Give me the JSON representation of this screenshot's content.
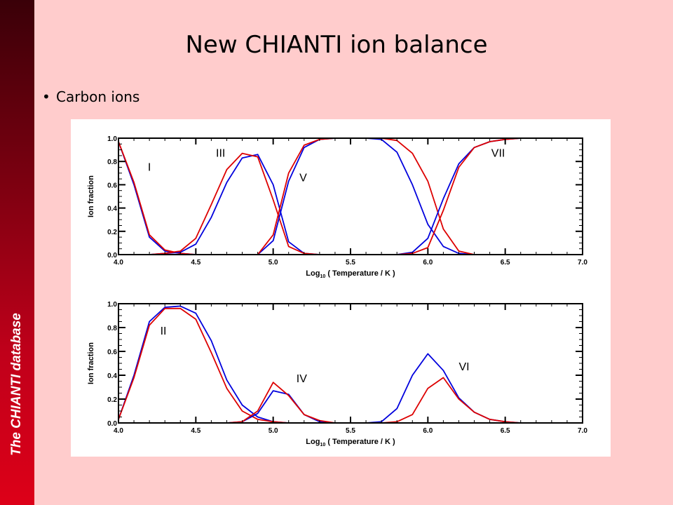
{
  "sidebar": {
    "text": "The CHIANTI database"
  },
  "slide": {
    "title": "New CHIANTI ion balance",
    "bullet": "Carbon ions"
  },
  "colors": {
    "background": "#ffcccc",
    "sidebar": "#c0001a",
    "series_blue": "#0000dd",
    "series_red": "#dd0000"
  },
  "chart_data": [
    {
      "type": "line",
      "xlabel_main": "Log",
      "xlabel_sub": "10",
      "xlabel_rest": " ( Temperature / K )",
      "ylabel": "Ion fraction",
      "xlim": [
        4.0,
        7.0
      ],
      "ylim": [
        0.0,
        1.0
      ],
      "xticks": [
        "4.0",
        "4.5",
        "5.0",
        "5.5",
        "6.0",
        "6.5",
        "7.0"
      ],
      "yticks": [
        "0.0",
        "0.2",
        "0.4",
        "0.6",
        "0.8",
        "1.0"
      ],
      "x": [
        4.0,
        4.1,
        4.2,
        4.3,
        4.4,
        4.5,
        4.6,
        4.7,
        4.8,
        4.9,
        5.0,
        5.1,
        5.2,
        5.3,
        5.4,
        5.5,
        5.6,
        5.7,
        5.8,
        5.9,
        6.0,
        6.1,
        6.2,
        6.3,
        6.4,
        6.5,
        6.6,
        6.7,
        6.8,
        6.9,
        7.0
      ],
      "series": [
        {
          "color": "blue",
          "values": [
            0.97,
            0.6,
            0.15,
            0.03,
            0.01,
            0,
            0,
            0,
            0,
            0,
            0,
            0,
            0,
            0,
            0,
            0,
            0,
            0,
            0,
            0,
            0,
            0,
            0,
            0,
            0,
            0,
            0,
            0,
            0,
            0,
            0
          ]
        },
        {
          "color": "red",
          "values": [
            0.97,
            0.62,
            0.17,
            0.04,
            0.01,
            0,
            0,
            0,
            0,
            0,
            0,
            0,
            0,
            0,
            0,
            0,
            0,
            0,
            0,
            0,
            0,
            0,
            0,
            0,
            0,
            0,
            0,
            0,
            0,
            0,
            0
          ]
        },
        {
          "color": "blue",
          "values": [
            0,
            0,
            0,
            0.01,
            0.02,
            0.09,
            0.32,
            0.62,
            0.83,
            0.86,
            0.6,
            0.11,
            0.01,
            0,
            0,
            0,
            0,
            0,
            0,
            0,
            0,
            0,
            0,
            0,
            0,
            0,
            0,
            0,
            0,
            0,
            0
          ]
        },
        {
          "color": "red",
          "values": [
            0,
            0,
            0,
            0.01,
            0.03,
            0.14,
            0.43,
            0.73,
            0.87,
            0.84,
            0.47,
            0.07,
            0.01,
            0,
            0,
            0,
            0,
            0,
            0,
            0,
            0,
            0,
            0,
            0,
            0,
            0,
            0,
            0,
            0,
            0,
            0
          ]
        },
        {
          "color": "blue",
          "values": [
            0,
            0,
            0,
            0,
            0,
            0,
            0,
            0,
            0,
            0,
            0.12,
            0.63,
            0.92,
            0.99,
            1.0,
            1.0,
            1.0,
            0.99,
            0.88,
            0.6,
            0.26,
            0.07,
            0.01,
            0,
            0,
            0,
            0,
            0,
            0,
            0,
            0
          ]
        },
        {
          "color": "red",
          "values": [
            0,
            0,
            0,
            0,
            0,
            0,
            0,
            0,
            0,
            0,
            0.17,
            0.7,
            0.94,
            0.99,
            1.0,
            1.0,
            1.0,
            1.0,
            0.98,
            0.87,
            0.63,
            0.22,
            0.03,
            0,
            0,
            0,
            0,
            0,
            0,
            0,
            0
          ]
        },
        {
          "color": "blue",
          "values": [
            0,
            0,
            0,
            0,
            0,
            0,
            0,
            0,
            0,
            0,
            0,
            0,
            0,
            0,
            0,
            0,
            0,
            0,
            0,
            0.02,
            0.14,
            0.48,
            0.78,
            0.92,
            0.97,
            0.99,
            1.0,
            1.0,
            1.0,
            1.0,
            1.0
          ]
        },
        {
          "color": "red",
          "values": [
            0,
            0,
            0,
            0,
            0,
            0,
            0,
            0,
            0,
            0,
            0,
            0,
            0,
            0,
            0,
            0,
            0,
            0,
            0,
            0.01,
            0.06,
            0.38,
            0.75,
            0.92,
            0.97,
            0.99,
            1.0,
            1.0,
            1.0,
            1.0,
            1.0
          ]
        }
      ],
      "annotations": [
        {
          "text": "I",
          "x": 4.19,
          "y": 0.72
        },
        {
          "text": "III",
          "x": 4.63,
          "y": 0.84
        },
        {
          "text": "V",
          "x": 5.17,
          "y": 0.63
        },
        {
          "text": "VII",
          "x": 6.41,
          "y": 0.84
        }
      ]
    },
    {
      "type": "line",
      "xlabel_main": "Log",
      "xlabel_sub": "10",
      "xlabel_rest": " ( Temperature / K )",
      "ylabel": "Ion fraction",
      "xlim": [
        4.0,
        7.0
      ],
      "ylim": [
        0.0,
        1.0
      ],
      "xticks": [
        "4.0",
        "4.5",
        "5.0",
        "5.5",
        "6.0",
        "6.5",
        "7.0"
      ],
      "yticks": [
        "0.0",
        "0.2",
        "0.4",
        "0.6",
        "0.8",
        "1.0"
      ],
      "x": [
        4.0,
        4.1,
        4.2,
        4.3,
        4.4,
        4.5,
        4.6,
        4.7,
        4.8,
        4.9,
        5.0,
        5.1,
        5.2,
        5.3,
        5.4,
        5.5,
        5.6,
        5.7,
        5.8,
        5.9,
        6.0,
        6.1,
        6.2,
        6.3,
        6.4,
        6.5,
        6.6,
        6.7,
        6.8,
        6.9,
        7.0
      ],
      "series": [
        {
          "color": "blue",
          "values": [
            0.03,
            0.4,
            0.85,
            0.97,
            0.98,
            0.92,
            0.69,
            0.36,
            0.15,
            0.05,
            0.01,
            0,
            0,
            0,
            0,
            0,
            0,
            0,
            0,
            0,
            0,
            0,
            0,
            0,
            0,
            0,
            0,
            0,
            0,
            0,
            0
          ]
        },
        {
          "color": "red",
          "values": [
            0.03,
            0.38,
            0.82,
            0.96,
            0.96,
            0.87,
            0.59,
            0.29,
            0.1,
            0.03,
            0.01,
            0,
            0,
            0,
            0,
            0,
            0,
            0,
            0,
            0,
            0,
            0,
            0,
            0,
            0,
            0,
            0,
            0,
            0,
            0,
            0
          ]
        },
        {
          "color": "blue",
          "values": [
            0,
            0,
            0,
            0,
            0,
            0,
            0,
            0,
            0.01,
            0.08,
            0.27,
            0.24,
            0.07,
            0.01,
            0,
            0,
            0,
            0,
            0,
            0,
            0,
            0,
            0,
            0,
            0,
            0,
            0,
            0,
            0,
            0,
            0
          ]
        },
        {
          "color": "red",
          "values": [
            0,
            0,
            0,
            0,
            0,
            0,
            0,
            0,
            0.01,
            0.1,
            0.34,
            0.23,
            0.07,
            0.02,
            0,
            0,
            0,
            0,
            0,
            0,
            0,
            0,
            0,
            0,
            0,
            0,
            0,
            0,
            0,
            0,
            0
          ]
        },
        {
          "color": "blue",
          "values": [
            0,
            0,
            0,
            0,
            0,
            0,
            0,
            0,
            0,
            0,
            0,
            0,
            0,
            0,
            0,
            0,
            0,
            0.01,
            0.12,
            0.4,
            0.58,
            0.44,
            0.21,
            0.09,
            0.03,
            0.01,
            0,
            0,
            0,
            0,
            0
          ]
        },
        {
          "color": "red",
          "values": [
            0,
            0,
            0,
            0,
            0,
            0,
            0,
            0,
            0,
            0,
            0,
            0,
            0,
            0,
            0,
            0,
            0,
            0,
            0.01,
            0.07,
            0.29,
            0.38,
            0.2,
            0.09,
            0.03,
            0.01,
            0,
            0,
            0,
            0,
            0
          ]
        }
      ],
      "annotations": [
        {
          "text": "II",
          "x": 4.27,
          "y": 0.74
        },
        {
          "text": "IV",
          "x": 5.15,
          "y": 0.34
        },
        {
          "text": "VI",
          "x": 6.2,
          "y": 0.44
        }
      ]
    }
  ]
}
